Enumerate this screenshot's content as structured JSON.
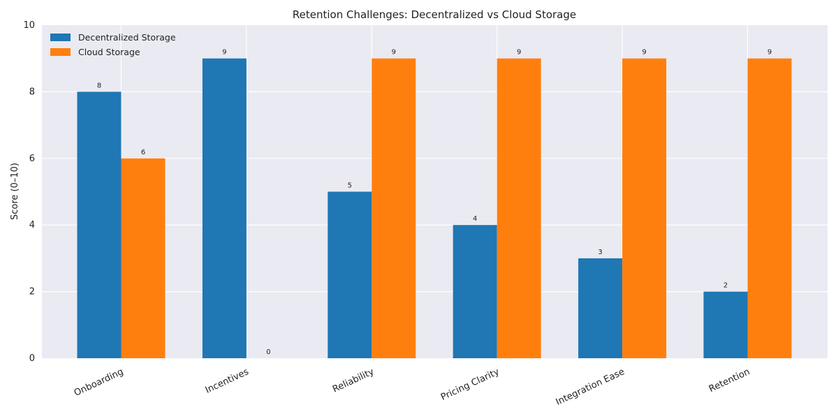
{
  "chart_data": {
    "type": "bar",
    "title": "Retention Challenges: Decentralized vs Cloud Storage",
    "xlabel": "",
    "ylabel": "Score (0–10)",
    "ylim": [
      0,
      10
    ],
    "yticks": [
      0,
      2,
      4,
      6,
      8,
      10
    ],
    "categories": [
      "Onboarding",
      "Incentives",
      "Reliability",
      "Pricing Clarity",
      "Integration Ease",
      "Retention"
    ],
    "series": [
      {
        "name": "Decentralized Storage",
        "color": "#1f77b4",
        "values": [
          8,
          9,
          5,
          4,
          3,
          2
        ]
      },
      {
        "name": "Cloud Storage",
        "color": "#ff7f0e",
        "values": [
          6,
          0,
          9,
          9,
          9,
          9
        ]
      }
    ],
    "grid": true,
    "legend_position": "top-left",
    "background_color": "#eaeaf2"
  }
}
